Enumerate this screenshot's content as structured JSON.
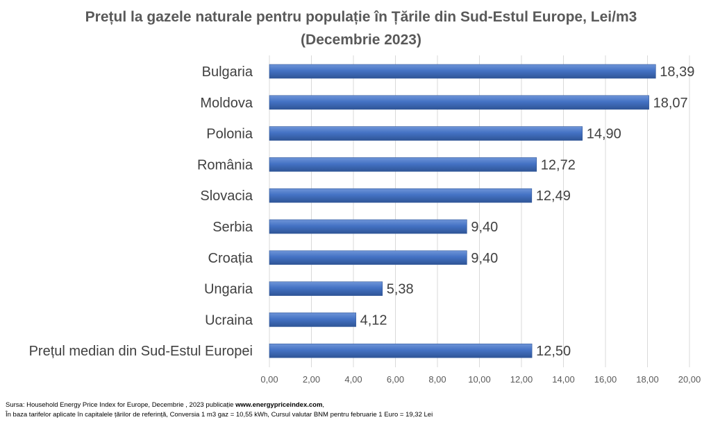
{
  "chart_data": {
    "type": "bar",
    "orientation": "horizontal",
    "title": "Prețul la gazele naturale pentru populație în Țările din Sud-Estul Europe, Lei/m3",
    "subtitle": "(Decembrie 2023)",
    "categories": [
      "Bulgaria",
      "Moldova",
      "Polonia",
      "România",
      "Slovacia",
      "Serbia",
      "Croația",
      "Ungaria",
      "Ucraina",
      "Prețul median din Sud-Estul Europei"
    ],
    "values": [
      18.39,
      18.07,
      14.9,
      12.72,
      12.49,
      9.4,
      9.4,
      5.38,
      4.12,
      12.5
    ],
    "data_labels": [
      "18,39",
      "18,07",
      "14,90",
      "12,72",
      "12,49",
      "9,40",
      "9,40",
      "5,38",
      "4,12",
      "12,50"
    ],
    "xlim": [
      0,
      20
    ],
    "xticks": [
      0,
      2,
      4,
      6,
      8,
      10,
      12,
      14,
      16,
      18,
      20
    ],
    "xtick_labels": [
      "0,00",
      "2,00",
      "4,00",
      "6,00",
      "8,00",
      "10,00",
      "12,00",
      "14,00",
      "16,00",
      "18,00",
      "20,00"
    ],
    "xlabel": "",
    "ylabel": "",
    "grid": "vertical",
    "legend": "none",
    "bar_color": "#4472C4"
  },
  "footnote": {
    "line1_prefix": "Sursa:  Household Energy Price Index for Europe, Decembrie , 2023 publicație ",
    "line1_link": "www.energypriceindex.com",
    "line1_suffix": ",",
    "line2": "În baza tarifelor aplicate în capitalele țărilor de referință, Conversia 1 m3 gaz = 10,55 kWh, Cursul valutar BNM pentru februarie 1 Euro = 19,32 Lei"
  }
}
